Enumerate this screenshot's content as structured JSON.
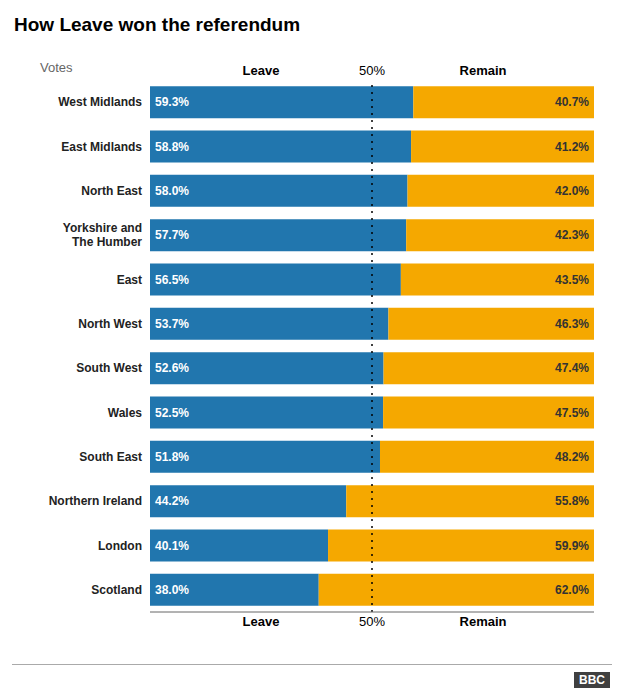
{
  "chart_data": {
    "type": "bar",
    "title": "How Leave won the referendum",
    "orientation": "horizontal",
    "stacked": true,
    "categories": [
      "West Midlands",
      "East Midlands",
      "North East",
      "Yorkshire and\nThe Humber",
      "East",
      "North West",
      "South West",
      "Wales",
      "South East",
      "Northern Ireland",
      "London",
      "Scotland"
    ],
    "series": [
      {
        "name": "Leave",
        "color": "#2176ae",
        "values": [
          59.3,
          58.8,
          58.0,
          57.7,
          56.5,
          53.7,
          52.6,
          52.5,
          51.8,
          44.2,
          40.1,
          38.0
        ],
        "value_labels": [
          "59.3%",
          "58.8%",
          "58.0%",
          "57.7%",
          "56.5%",
          "53.7%",
          "52.6%",
          "52.5%",
          "51.8%",
          "44.2%",
          "40.1%",
          "38.0%"
        ]
      },
      {
        "name": "Remain",
        "color": "#f5a800",
        "values": [
          40.7,
          41.2,
          42.0,
          42.3,
          43.5,
          46.3,
          47.4,
          47.5,
          48.2,
          55.8,
          59.9,
          62.0
        ],
        "value_labels": [
          "40.7%",
          "41.2%",
          "42.0%",
          "42.3%",
          "43.5%",
          "46.3%",
          "47.4%",
          "47.5%",
          "48.2%",
          "55.8%",
          "59.9%",
          "62.0%"
        ]
      }
    ],
    "xlim": [
      0,
      100
    ],
    "tick_labels": "y",
    "grid": false,
    "data_labels": true,
    "annotations": [
      {
        "text": "50%",
        "x": 50
      },
      {
        "text": "Votes"
      },
      {
        "text": "BBC"
      }
    ]
  }
}
